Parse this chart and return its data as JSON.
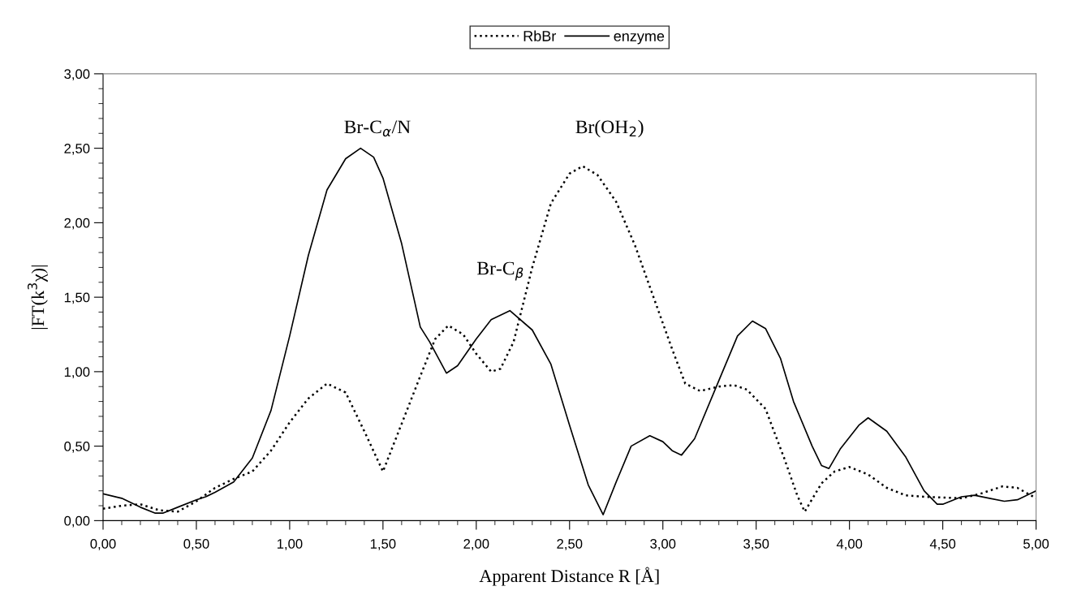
{
  "chart_data": {
    "type": "line",
    "xlabel": "Apparent Distance R [Å]",
    "ylabel": "|FT(k$^{3}$χ)|",
    "xlim": [
      0,
      5
    ],
    "ylim": [
      0,
      3
    ],
    "xticks": [
      {
        "value": 0,
        "label": "0,00"
      },
      {
        "value": 0.5,
        "label": "0,50"
      },
      {
        "value": 1,
        "label": "1,00"
      },
      {
        "value": 1.5,
        "label": "1,50"
      },
      {
        "value": 2,
        "label": "2,00"
      },
      {
        "value": 2.5,
        "label": "2,50"
      },
      {
        "value": 3,
        "label": "3,00"
      },
      {
        "value": 3.5,
        "label": "3,50"
      },
      {
        "value": 4,
        "label": "4,00"
      },
      {
        "value": 4.5,
        "label": "4,50"
      },
      {
        "value": 5,
        "label": "5,00"
      }
    ],
    "yticks": [
      {
        "value": 0,
        "label": "0,00"
      },
      {
        "value": 0.5,
        "label": "0,50"
      },
      {
        "value": 1,
        "label": "1,00"
      },
      {
        "value": 1.5,
        "label": "1,50"
      },
      {
        "value": 2,
        "label": "2,00"
      },
      {
        "value": 2.5,
        "label": "2,50"
      },
      {
        "value": 3,
        "label": "3,00"
      }
    ],
    "grid": false,
    "legend": "top",
    "marker": "none",
    "series": [
      {
        "name": "RbBr",
        "color": "#000000",
        "line_style": "dotted",
        "x": [
          0,
          0.1,
          0.2,
          0.3,
          0.4,
          0.5,
          0.6,
          0.7,
          0.8,
          0.9,
          1.0,
          1.1,
          1.2,
          1.3,
          1.4,
          1.5,
          1.6,
          1.7,
          1.78,
          1.85,
          1.93,
          2.0,
          2.08,
          2.13,
          2.2,
          2.3,
          2.4,
          2.5,
          2.57,
          2.65,
          2.75,
          2.85,
          2.95,
          3.05,
          3.12,
          3.2,
          3.3,
          3.38,
          3.45,
          3.55,
          3.65,
          3.72,
          3.76,
          3.85,
          3.92,
          4.0,
          4.1,
          4.2,
          4.3,
          4.4,
          4.6,
          4.7,
          4.82,
          4.9,
          5.0
        ],
        "values": [
          0.08,
          0.1,
          0.11,
          0.07,
          0.06,
          0.13,
          0.22,
          0.28,
          0.33,
          0.47,
          0.66,
          0.82,
          0.92,
          0.86,
          0.6,
          0.33,
          0.65,
          0.97,
          1.22,
          1.31,
          1.25,
          1.12,
          1.0,
          1.02,
          1.2,
          1.7,
          2.13,
          2.33,
          2.38,
          2.32,
          2.14,
          1.85,
          1.5,
          1.15,
          0.92,
          0.87,
          0.9,
          0.91,
          0.88,
          0.75,
          0.42,
          0.17,
          0.06,
          0.25,
          0.33,
          0.36,
          0.31,
          0.22,
          0.17,
          0.16,
          0.15,
          0.18,
          0.23,
          0.22,
          0.15
        ]
      },
      {
        "name": "enzyme",
        "color": "#000000",
        "line_style": "solid",
        "x": [
          0,
          0.1,
          0.2,
          0.28,
          0.32,
          0.4,
          0.5,
          0.55,
          0.6,
          0.7,
          0.8,
          0.9,
          1.0,
          1.1,
          1.2,
          1.3,
          1.38,
          1.45,
          1.5,
          1.6,
          1.7,
          1.75,
          1.84,
          1.9,
          2.0,
          2.08,
          2.18,
          2.3,
          2.4,
          2.5,
          2.6,
          2.68,
          2.75,
          2.83,
          2.93,
          3.0,
          3.05,
          3.1,
          3.17,
          3.3,
          3.4,
          3.48,
          3.55,
          3.63,
          3.7,
          3.8,
          3.85,
          3.89,
          3.95,
          4.05,
          4.1,
          4.2,
          4.3,
          4.4,
          4.47,
          4.5,
          4.6,
          4.67,
          4.75,
          4.83,
          4.9,
          5.0
        ],
        "values": [
          0.18,
          0.15,
          0.09,
          0.05,
          0.05,
          0.09,
          0.14,
          0.16,
          0.19,
          0.26,
          0.42,
          0.74,
          1.24,
          1.78,
          2.22,
          2.43,
          2.5,
          2.44,
          2.3,
          1.86,
          1.3,
          1.2,
          0.99,
          1.04,
          1.22,
          1.35,
          1.41,
          1.28,
          1.05,
          0.64,
          0.24,
          0.04,
          0.26,
          0.5,
          0.57,
          0.53,
          0.47,
          0.44,
          0.55,
          0.94,
          1.24,
          1.34,
          1.29,
          1.09,
          0.8,
          0.5,
          0.37,
          0.35,
          0.48,
          0.64,
          0.69,
          0.6,
          0.43,
          0.2,
          0.11,
          0.11,
          0.16,
          0.17,
          0.15,
          0.13,
          0.14,
          0.2
        ]
      }
    ],
    "annotations": [
      "Br-C$_{α}$/N",
      "Br-C$_{β}$",
      "Br(OH$_{2}$)"
    ]
  }
}
